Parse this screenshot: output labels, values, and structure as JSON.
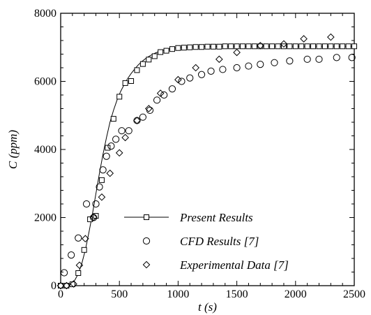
{
  "chart_data": {
    "type": "scatter",
    "title": "",
    "xlabel": "t (s)",
    "ylabel": "C (ppm)",
    "xlim": [
      0,
      2500
    ],
    "ylim": [
      0,
      8000
    ],
    "xticks": [
      0,
      500,
      1000,
      1500,
      2000,
      2500
    ],
    "yticks": [
      0,
      2000,
      4000,
      6000,
      8000
    ],
    "legend_position": "bottom-center",
    "grid": false,
    "series": [
      {
        "name": "Present Results",
        "style": "line-with-square-markers",
        "x": [
          0,
          30,
          60,
          90,
          120,
          150,
          180,
          210,
          240,
          270,
          300,
          330,
          360,
          390,
          420,
          450,
          480,
          510,
          540,
          570,
          600,
          630,
          660,
          690,
          720,
          750,
          780,
          810,
          840,
          870,
          900,
          950,
          1000,
          1100,
          1200,
          1300,
          1400,
          1500,
          1600,
          1800,
          2000,
          2200,
          2400,
          2500
        ],
        "values": [
          0,
          5,
          20,
          60,
          160,
          350,
          650,
          1050,
          1550,
          2100,
          2700,
          3300,
          3850,
          4350,
          4800,
          5150,
          5450,
          5700,
          5900,
          6080,
          6230,
          6360,
          6480,
          6580,
          6660,
          6730,
          6790,
          6840,
          6880,
          6910,
          6940,
          6970,
          6990,
          7010,
          7020,
          7025,
          7030,
          7030,
          7030,
          7030,
          7030,
          7030,
          7030,
          7030
        ],
        "marker_x": [
          0,
          50,
          100,
          150,
          200,
          250,
          300,
          350,
          400,
          450,
          500,
          550,
          600,
          650,
          700,
          750,
          800,
          850,
          900,
          950,
          1000,
          1050,
          1100,
          1150,
          1200,
          1250,
          1300,
          1350,
          1400,
          1450,
          1500,
          1550,
          1600,
          1650,
          1700,
          1750,
          1800,
          1850,
          1900,
          1950,
          2000,
          2050,
          2100,
          2150,
          2200,
          2250,
          2300,
          2350,
          2400,
          2450,
          2500
        ],
        "marker_y": [
          0,
          0,
          40,
          370,
          1050,
          1950,
          2050,
          3100,
          4050,
          4900,
          5550,
          5950,
          6010,
          6330,
          6510,
          6640,
          6740,
          6860,
          6900,
          6950,
          6980,
          6990,
          7000,
          7010,
          7010,
          7020,
          7020,
          7020,
          7030,
          7030,
          7030,
          7030,
          7030,
          7030,
          7030,
          7030,
          7030,
          7030,
          7030,
          7030,
          7030,
          7030,
          7030,
          7030,
          7030,
          7030,
          7030,
          7030,
          7030,
          7030,
          7030
        ]
      },
      {
        "name": "CFD Results [7]",
        "style": "circle-markers",
        "x": [
          30,
          90,
          150,
          220,
          280,
          300,
          330,
          360,
          390,
          430,
          470,
          520,
          580,
          650,
          700,
          760,
          820,
          880,
          950,
          1030,
          1100,
          1200,
          1280,
          1380,
          1500,
          1600,
          1700,
          1820,
          1950,
          2100,
          2200,
          2350,
          2480
        ],
        "values": [
          380,
          900,
          1400,
          2400,
          2000,
          2400,
          2900,
          3400,
          3800,
          4100,
          4300,
          4550,
          4550,
          4850,
          4950,
          5150,
          5450,
          5600,
          5780,
          6000,
          6100,
          6200,
          6300,
          6350,
          6400,
          6450,
          6500,
          6550,
          6600,
          6650,
          6650,
          6700,
          6700
        ]
      },
      {
        "name": "Experimental Data [7]",
        "style": "diamond-markers",
        "x": [
          0,
          50,
          110,
          160,
          210,
          280,
          350,
          420,
          500,
          550,
          650,
          750,
          850,
          1000,
          1150,
          1350,
          1500,
          1700,
          1900,
          2070,
          2300
        ],
        "values": [
          0,
          0,
          50,
          600,
          1380,
          2010,
          2600,
          3300,
          3900,
          4350,
          4850,
          5200,
          5650,
          6050,
          6400,
          6650,
          6850,
          7050,
          7100,
          7250,
          7300
        ]
      }
    ]
  }
}
